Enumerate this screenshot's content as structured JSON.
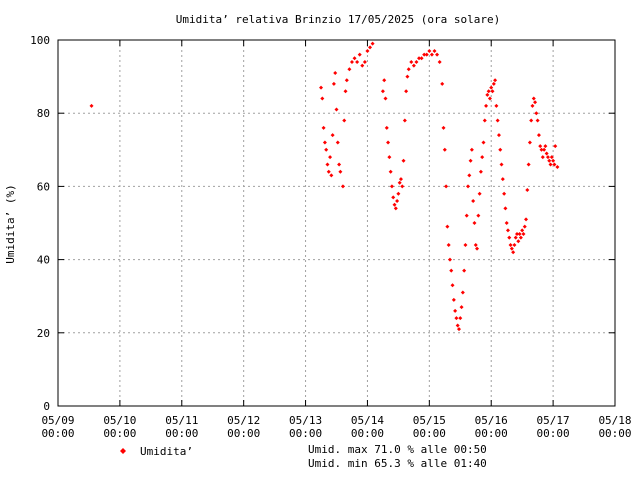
{
  "chart_data": {
    "type": "scatter",
    "title": "Umidita’ relativa Brinzio 17/05/2025 (ora solare)",
    "ylabel": "Umidita’ (%)",
    "xlabel": "",
    "ylim": [
      0,
      100
    ],
    "yticks": [
      "0",
      "20",
      "40",
      "60",
      "80",
      "100"
    ],
    "xlim": [
      "2025-05-09 00:00",
      "2025-05-18 00:00"
    ],
    "xticks": [
      {
        "date": "05/09",
        "time": "00:00"
      },
      {
        "date": "05/10",
        "time": "00:00"
      },
      {
        "date": "05/11",
        "time": "00:00"
      },
      {
        "date": "05/12",
        "time": "00:00"
      },
      {
        "date": "05/13",
        "time": "00:00"
      },
      {
        "date": "05/14",
        "time": "00:00"
      },
      {
        "date": "05/15",
        "time": "00:00"
      },
      {
        "date": "05/16",
        "time": "00:00"
      },
      {
        "date": "05/17",
        "time": "00:00"
      },
      {
        "date": "05/18",
        "time": "00:00"
      }
    ],
    "grid": true,
    "legend": "bottom-left",
    "series": [
      {
        "name": "Umidita’",
        "color": "#ff0000",
        "points": [
          [
            "2025-05-09 13:00",
            82
          ],
          [
            "2025-05-13 06:00",
            87
          ],
          [
            "2025-05-13 06:30",
            84
          ],
          [
            "2025-05-13 07:00",
            76
          ],
          [
            "2025-05-13 07:30",
            72
          ],
          [
            "2025-05-13 08:00",
            70
          ],
          [
            "2025-05-13 08:30",
            66
          ],
          [
            "2025-05-13 09:00",
            64
          ],
          [
            "2025-05-13 09:30",
            68
          ],
          [
            "2025-05-13 10:00",
            63
          ],
          [
            "2025-05-13 10:30",
            74
          ],
          [
            "2025-05-13 11:00",
            88
          ],
          [
            "2025-05-13 11:30",
            91
          ],
          [
            "2025-05-13 12:00",
            81
          ],
          [
            "2025-05-13 12:30",
            72
          ],
          [
            "2025-05-13 13:00",
            66
          ],
          [
            "2025-05-13 13:30",
            64
          ],
          [
            "2025-05-13 14:30",
            60
          ],
          [
            "2025-05-13 15:00",
            78
          ],
          [
            "2025-05-13 15:30",
            86
          ],
          [
            "2025-05-13 16:00",
            89
          ],
          [
            "2025-05-13 17:00",
            92
          ],
          [
            "2025-05-13 18:00",
            94
          ],
          [
            "2025-05-13 19:00",
            95
          ],
          [
            "2025-05-13 20:00",
            94
          ],
          [
            "2025-05-13 21:00",
            96
          ],
          [
            "2025-05-13 22:00",
            93
          ],
          [
            "2025-05-13 23:00",
            94
          ],
          [
            "2025-05-14 00:00",
            97
          ],
          [
            "2025-05-14 01:00",
            98
          ],
          [
            "2025-05-14 02:00",
            99
          ],
          [
            "2025-05-14 06:00",
            86
          ],
          [
            "2025-05-14 06:30",
            89
          ],
          [
            "2025-05-14 07:00",
            84
          ],
          [
            "2025-05-14 07:30",
            76
          ],
          [
            "2025-05-14 08:00",
            72
          ],
          [
            "2025-05-14 08:30",
            68
          ],
          [
            "2025-05-14 09:00",
            64
          ],
          [
            "2025-05-14 09:30",
            60
          ],
          [
            "2025-05-14 10:00",
            57
          ],
          [
            "2025-05-14 10:30",
            55
          ],
          [
            "2025-05-14 11:00",
            54
          ],
          [
            "2025-05-14 11:30",
            56
          ],
          [
            "2025-05-14 12:00",
            58
          ],
          [
            "2025-05-14 12:30",
            61
          ],
          [
            "2025-05-14 13:00",
            62
          ],
          [
            "2025-05-14 13:30",
            60
          ],
          [
            "2025-05-14 14:00",
            67
          ],
          [
            "2025-05-14 14:30",
            78
          ],
          [
            "2025-05-14 15:00",
            86
          ],
          [
            "2025-05-14 15:30",
            90
          ],
          [
            "2025-05-14 16:00",
            92
          ],
          [
            "2025-05-14 17:00",
            94
          ],
          [
            "2025-05-14 18:00",
            93
          ],
          [
            "2025-05-14 19:00",
            94
          ],
          [
            "2025-05-14 20:00",
            95
          ],
          [
            "2025-05-14 21:00",
            95
          ],
          [
            "2025-05-14 22:00",
            96
          ],
          [
            "2025-05-14 23:00",
            96
          ],
          [
            "2025-05-15 00:00",
            97
          ],
          [
            "2025-05-15 01:00",
            96
          ],
          [
            "2025-05-15 02:00",
            97
          ],
          [
            "2025-05-15 03:00",
            96
          ],
          [
            "2025-05-15 04:00",
            94
          ],
          [
            "2025-05-15 05:00",
            88
          ],
          [
            "2025-05-15 05:30",
            76
          ],
          [
            "2025-05-15 06:00",
            70
          ],
          [
            "2025-05-15 06:30",
            60
          ],
          [
            "2025-05-15 07:00",
            49
          ],
          [
            "2025-05-15 07:30",
            44
          ],
          [
            "2025-05-15 08:00",
            40
          ],
          [
            "2025-05-15 08:30",
            37
          ],
          [
            "2025-05-15 09:00",
            33
          ],
          [
            "2025-05-15 09:30",
            29
          ],
          [
            "2025-05-15 10:00",
            26
          ],
          [
            "2025-05-15 10:30",
            24
          ],
          [
            "2025-05-15 11:00",
            22
          ],
          [
            "2025-05-15 11:30",
            21
          ],
          [
            "2025-05-15 12:00",
            24
          ],
          [
            "2025-05-15 12:30",
            27
          ],
          [
            "2025-05-15 13:00",
            31
          ],
          [
            "2025-05-15 13:30",
            37
          ],
          [
            "2025-05-15 14:00",
            44
          ],
          [
            "2025-05-15 14:30",
            52
          ],
          [
            "2025-05-15 15:00",
            60
          ],
          [
            "2025-05-15 15:30",
            63
          ],
          [
            "2025-05-15 16:00",
            67
          ],
          [
            "2025-05-15 16:30",
            70
          ],
          [
            "2025-05-15 17:00",
            56
          ],
          [
            "2025-05-15 17:30",
            50
          ],
          [
            "2025-05-15 18:00",
            44
          ],
          [
            "2025-05-15 18:30",
            43
          ],
          [
            "2025-05-15 19:00",
            52
          ],
          [
            "2025-05-15 19:30",
            58
          ],
          [
            "2025-05-15 20:00",
            64
          ],
          [
            "2025-05-15 20:30",
            68
          ],
          [
            "2025-05-15 21:00",
            72
          ],
          [
            "2025-05-15 21:30",
            78
          ],
          [
            "2025-05-15 22:00",
            82
          ],
          [
            "2025-05-15 22:30",
            85
          ],
          [
            "2025-05-15 23:00",
            86
          ],
          [
            "2025-05-15 23:30",
            84
          ],
          [
            "2025-05-16 00:00",
            87
          ],
          [
            "2025-05-16 00:30",
            86
          ],
          [
            "2025-05-16 01:00",
            88
          ],
          [
            "2025-05-16 01:30",
            89
          ],
          [
            "2025-05-16 02:00",
            82
          ],
          [
            "2025-05-16 02:30",
            78
          ],
          [
            "2025-05-16 03:00",
            74
          ],
          [
            "2025-05-16 03:30",
            70
          ],
          [
            "2025-05-16 04:00",
            66
          ],
          [
            "2025-05-16 04:30",
            62
          ],
          [
            "2025-05-16 05:00",
            58
          ],
          [
            "2025-05-16 05:30",
            54
          ],
          [
            "2025-05-16 06:00",
            50
          ],
          [
            "2025-05-16 06:30",
            48
          ],
          [
            "2025-05-16 07:00",
            46
          ],
          [
            "2025-05-16 07:30",
            44
          ],
          [
            "2025-05-16 08:00",
            43
          ],
          [
            "2025-05-16 08:30",
            42
          ],
          [
            "2025-05-16 09:00",
            44
          ],
          [
            "2025-05-16 09:30",
            46
          ],
          [
            "2025-05-16 10:00",
            47
          ],
          [
            "2025-05-16 10:30",
            45
          ],
          [
            "2025-05-16 11:00",
            47
          ],
          [
            "2025-05-16 11:30",
            46
          ],
          [
            "2025-05-16 12:00",
            48
          ],
          [
            "2025-05-16 12:30",
            47
          ],
          [
            "2025-05-16 13:00",
            49
          ],
          [
            "2025-05-16 13:30",
            51
          ],
          [
            "2025-05-16 14:00",
            59
          ],
          [
            "2025-05-16 14:30",
            66
          ],
          [
            "2025-05-16 15:00",
            72
          ],
          [
            "2025-05-16 15:30",
            78
          ],
          [
            "2025-05-16 16:00",
            82
          ],
          [
            "2025-05-16 16:30",
            84
          ],
          [
            "2025-05-16 17:00",
            83
          ],
          [
            "2025-05-16 17:30",
            80
          ],
          [
            "2025-05-16 18:00",
            78
          ],
          [
            "2025-05-16 18:30",
            74
          ],
          [
            "2025-05-16 19:00",
            71
          ],
          [
            "2025-05-16 19:30",
            70
          ],
          [
            "2025-05-16 20:00",
            68
          ],
          [
            "2025-05-16 20:30",
            70
          ],
          [
            "2025-05-16 21:00",
            71
          ],
          [
            "2025-05-16 21:30",
            69
          ],
          [
            "2025-05-16 22:00",
            68
          ],
          [
            "2025-05-16 22:30",
            67
          ],
          [
            "2025-05-16 23:00",
            66
          ],
          [
            "2025-05-16 23:30",
            68
          ],
          [
            "2025-05-17 00:00",
            67
          ],
          [
            "2025-05-17 00:30",
            66
          ],
          [
            "2025-05-17 00:50",
            71
          ],
          [
            "2025-05-17 01:40",
            65.3
          ]
        ]
      }
    ],
    "annotations": [
      "Umid. max 71.0 % alle 00:50",
      "Umid. min 65.3 % alle 01:40"
    ]
  }
}
